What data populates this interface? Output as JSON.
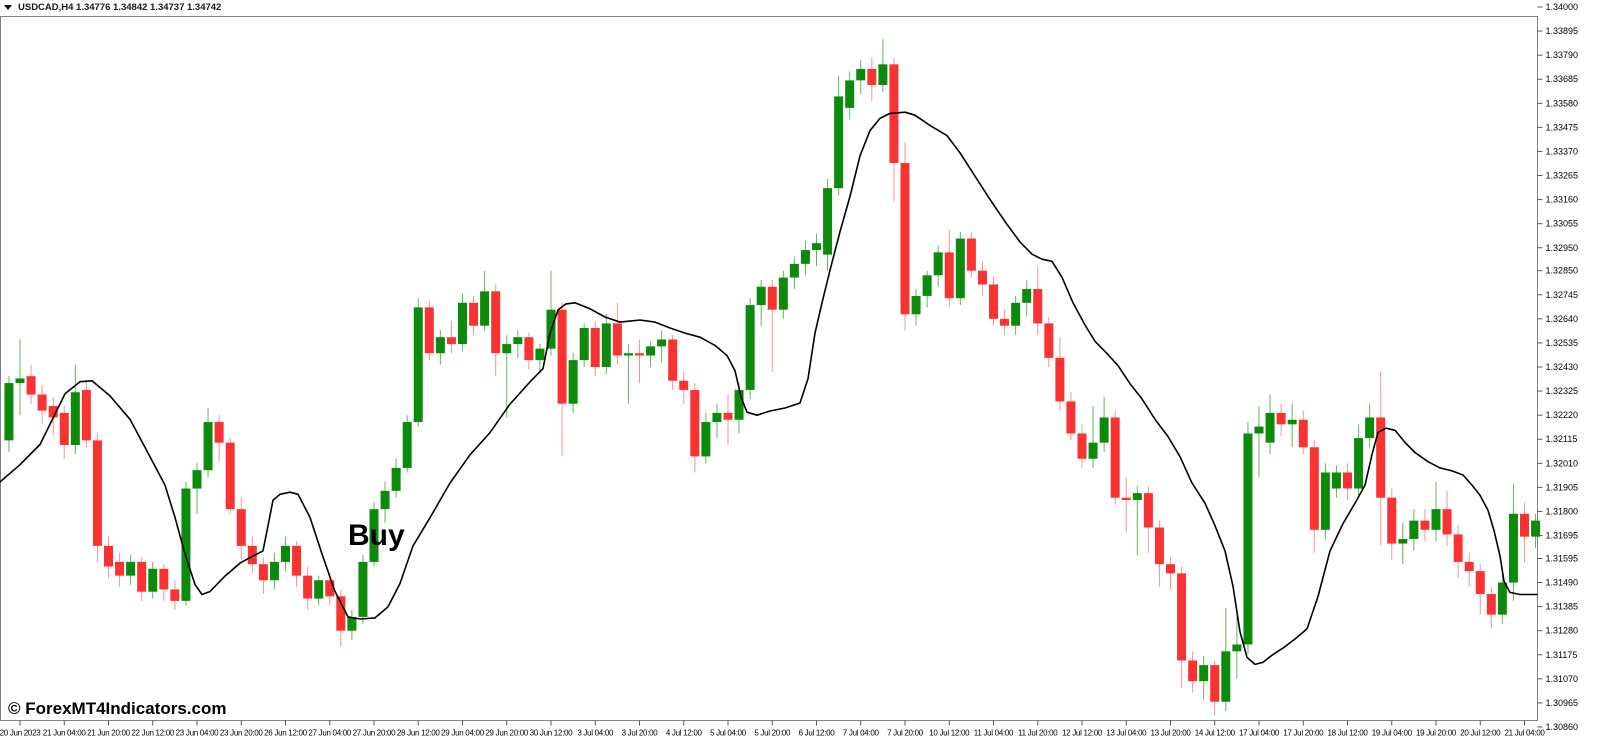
{
  "header": {
    "symbol_line": "USDCAD,H4  1.34776 1.34842 1.34737 1.34742",
    "dropdown_icon": "collapse-triangle"
  },
  "annotations": {
    "buy_label": "Buy",
    "watermark": "© ForexMT4Indicators.com"
  },
  "colors": {
    "background": "#ffffff",
    "bull_body": "#0c8a0c",
    "bear_body": "#f93232",
    "bull_wick": "#5cb85c",
    "bear_wick": "#f59393",
    "ma_line": "#000000",
    "frame": "#808080",
    "axis_text": "#000000"
  },
  "chart_data": {
    "type": "candlestick",
    "symbol": "USDCAD",
    "timeframe": "H4",
    "title": "USDCAD H4 candlestick chart with moving-average line and Buy signal",
    "grid": false,
    "legend_position": "none",
    "ylim": [
      1.3086,
      1.34
    ],
    "y_axis_labels": [
      "1.34000",
      "1.33895",
      "1.33790",
      "1.33685",
      "1.33580",
      "1.33475",
      "1.33370",
      "1.33265",
      "1.33160",
      "1.33055",
      "1.32950",
      "1.32850",
      "1.32745",
      "1.32640",
      "1.32535",
      "1.32430",
      "1.32325",
      "1.32220",
      "1.32115",
      "1.32010",
      "1.31905",
      "1.31800",
      "1.31695",
      "1.31595",
      "1.31490",
      "1.31385",
      "1.31280",
      "1.31175",
      "1.31070",
      "1.30965",
      "1.30860"
    ],
    "x_axis_labels": [
      "20 Jun 2023",
      "21 Jun 04:00",
      "21 Jun 20:00",
      "22 Jun 12:00",
      "23 Jun 04:00",
      "23 Jun 20:00",
      "26 Jun 12:00",
      "27 Jun 04:00",
      "27 Jun 20:00",
      "28 Jun 12:00",
      "29 Jun 04:00",
      "29 Jun 20:00",
      "30 Jun 12:00",
      "3 Jul 04:00",
      "3 Jul 20:00",
      "4 Jul 12:00",
      "5 Jul 04:00",
      "5 Jul 20:00",
      "6 Jul 12:00",
      "7 Jul 04:00",
      "7 Jul 20:00",
      "10 Jul 12:00",
      "11 Jul 04:00",
      "11 Jul 20:00",
      "12 Jul 12:00",
      "13 Jul 04:00",
      "13 Jul 20:00",
      "14 Jul 12:00",
      "17 Jul 04:00",
      "17 Jul 20:00",
      "18 Jul 12:00",
      "19 Jul 04:00",
      "19 Jul 20:00",
      "20 Jul 12:00",
      "21 Jul 04:00"
    ],
    "x_label_every_n_bars": 4,
    "first_labeled_bar": 1,
    "candles_ohlc": [
      [
        1.3211,
        1.3239,
        1.3206,
        1.3236
      ],
      [
        1.3236,
        1.3255,
        1.3222,
        1.3238
      ],
      [
        1.3239,
        1.3244,
        1.3227,
        1.3231
      ],
      [
        1.3231,
        1.3235,
        1.3218,
        1.3224
      ],
      [
        1.3226,
        1.323,
        1.3213,
        1.3221
      ],
      [
        1.3223,
        1.3226,
        1.3203,
        1.3209
      ],
      [
        1.3209,
        1.3244,
        1.3205,
        1.3232
      ],
      [
        1.3233,
        1.3237,
        1.3208,
        1.3211
      ],
      [
        1.3211,
        1.3214,
        1.3158,
        1.3165
      ],
      [
        1.3165,
        1.3169,
        1.3151,
        1.3156
      ],
      [
        1.3158,
        1.3162,
        1.3147,
        1.3152
      ],
      [
        1.3152,
        1.3161,
        1.3148,
        1.3158
      ],
      [
        1.3158,
        1.316,
        1.3141,
        1.3145
      ],
      [
        1.3145,
        1.3158,
        1.3142,
        1.3155
      ],
      [
        1.3155,
        1.3157,
        1.3141,
        1.3146
      ],
      [
        1.3146,
        1.315,
        1.3137,
        1.3141
      ],
      [
        1.3141,
        1.3193,
        1.3139,
        1.319
      ],
      [
        1.319,
        1.3201,
        1.3179,
        1.3198
      ],
      [
        1.3198,
        1.3225,
        1.3195,
        1.3219
      ],
      [
        1.3219,
        1.3222,
        1.3202,
        1.321
      ],
      [
        1.321,
        1.3212,
        1.3179,
        1.3181
      ],
      [
        1.3181,
        1.3186,
        1.3159,
        1.3165
      ],
      [
        1.3165,
        1.3169,
        1.3153,
        1.3157
      ],
      [
        1.3157,
        1.316,
        1.3144,
        1.315
      ],
      [
        1.315,
        1.3162,
        1.3146,
        1.3158
      ],
      [
        1.3158,
        1.3169,
        1.3154,
        1.3165
      ],
      [
        1.3165,
        1.3167,
        1.3147,
        1.3152
      ],
      [
        1.3152,
        1.3156,
        1.3137,
        1.3142
      ],
      [
        1.3142,
        1.3152,
        1.3139,
        1.315
      ],
      [
        1.315,
        1.3153,
        1.3139,
        1.3143
      ],
      [
        1.3143,
        1.3146,
        1.3121,
        1.3128
      ],
      [
        1.3128,
        1.3137,
        1.3124,
        1.3134
      ],
      [
        1.3134,
        1.3161,
        1.3131,
        1.3158
      ],
      [
        1.3158,
        1.3184,
        1.3156,
        1.3181
      ],
      [
        1.3181,
        1.3193,
        1.3175,
        1.3189
      ],
      [
        1.3189,
        1.3203,
        1.3186,
        1.3199
      ],
      [
        1.3199,
        1.3222,
        1.3197,
        1.3219
      ],
      [
        1.3219,
        1.3273,
        1.3217,
        1.3269
      ],
      [
        1.3269,
        1.3272,
        1.3246,
        1.3249
      ],
      [
        1.3249,
        1.3259,
        1.3244,
        1.3256
      ],
      [
        1.3256,
        1.3263,
        1.3249,
        1.3253
      ],
      [
        1.3253,
        1.3275,
        1.325,
        1.3271
      ],
      [
        1.3271,
        1.3274,
        1.3257,
        1.3261
      ],
      [
        1.3261,
        1.3285,
        1.3259,
        1.3276
      ],
      [
        1.3276,
        1.3279,
        1.3239,
        1.3249
      ],
      [
        1.3249,
        1.3257,
        1.3221,
        1.3253
      ],
      [
        1.3253,
        1.3259,
        1.3247,
        1.3256
      ],
      [
        1.3256,
        1.3258,
        1.3242,
        1.3246
      ],
      [
        1.3246,
        1.3253,
        1.3241,
        1.3251
      ],
      [
        1.3251,
        1.3285,
        1.3248,
        1.3268
      ],
      [
        1.3268,
        1.3271,
        1.3204,
        1.3227
      ],
      [
        1.3227,
        1.3249,
        1.3223,
        1.3246
      ],
      [
        1.3246,
        1.3262,
        1.3243,
        1.326
      ],
      [
        1.326,
        1.3263,
        1.3239,
        1.3243
      ],
      [
        1.3243,
        1.3266,
        1.324,
        1.3262
      ],
      [
        1.3262,
        1.3271,
        1.3244,
        1.3248
      ],
      [
        1.3248,
        1.3253,
        1.3227,
        1.3249
      ],
      [
        1.3249,
        1.3255,
        1.3236,
        1.3248
      ],
      [
        1.3248,
        1.3254,
        1.3243,
        1.3252
      ],
      [
        1.3252,
        1.3259,
        1.3245,
        1.3255
      ],
      [
        1.3255,
        1.3257,
        1.3233,
        1.3237
      ],
      [
        1.3237,
        1.3241,
        1.3227,
        1.3233
      ],
      [
        1.3233,
        1.3236,
        1.3197,
        1.3204
      ],
      [
        1.3204,
        1.3223,
        1.3201,
        1.3219
      ],
      [
        1.3219,
        1.3227,
        1.3212,
        1.3223
      ],
      [
        1.3223,
        1.3231,
        1.3209,
        1.322
      ],
      [
        1.322,
        1.3236,
        1.3214,
        1.3233
      ],
      [
        1.3233,
        1.3273,
        1.3229,
        1.327
      ],
      [
        1.327,
        1.3281,
        1.3261,
        1.3278
      ],
      [
        1.3278,
        1.3281,
        1.3241,
        1.3268
      ],
      [
        1.3268,
        1.3285,
        1.3264,
        1.3282
      ],
      [
        1.3282,
        1.3291,
        1.3277,
        1.3288
      ],
      [
        1.3288,
        1.3298,
        1.3283,
        1.3294
      ],
      [
        1.3294,
        1.3301,
        1.3287,
        1.3297
      ],
      [
        1.3292,
        1.3325,
        1.3285,
        1.3321
      ],
      [
        1.3321,
        1.337,
        1.3318,
        1.3361
      ],
      [
        1.3356,
        1.3372,
        1.3351,
        1.3368
      ],
      [
        1.3368,
        1.3377,
        1.3362,
        1.3373
      ],
      [
        1.3373,
        1.3378,
        1.3359,
        1.3366
      ],
      [
        1.3366,
        1.3386,
        1.3363,
        1.3375
      ],
      [
        1.3375,
        1.3378,
        1.3315,
        1.3332
      ],
      [
        1.3332,
        1.3341,
        1.3259,
        1.3266
      ],
      [
        1.3266,
        1.3277,
        1.3261,
        1.3274
      ],
      [
        1.3274,
        1.3285,
        1.3269,
        1.3283
      ],
      [
        1.3283,
        1.3296,
        1.3278,
        1.3293
      ],
      [
        1.3293,
        1.3303,
        1.3269,
        1.3273
      ],
      [
        1.3273,
        1.3302,
        1.327,
        1.3299
      ],
      [
        1.3299,
        1.3302,
        1.3282,
        1.3285
      ],
      [
        1.3285,
        1.3289,
        1.3274,
        1.3279
      ],
      [
        1.3279,
        1.3282,
        1.3261,
        1.3264
      ],
      [
        1.3264,
        1.3268,
        1.3257,
        1.3261
      ],
      [
        1.3261,
        1.3274,
        1.3257,
        1.3271
      ],
      [
        1.3271,
        1.3281,
        1.3265,
        1.3277
      ],
      [
        1.3277,
        1.3287,
        1.3257,
        1.3262
      ],
      [
        1.3262,
        1.3265,
        1.3243,
        1.3247
      ],
      [
        1.3247,
        1.3256,
        1.3224,
        1.3228
      ],
      [
        1.3228,
        1.3232,
        1.3211,
        1.3214
      ],
      [
        1.3214,
        1.3218,
        1.3199,
        1.3203
      ],
      [
        1.3203,
        1.3226,
        1.3199,
        1.321
      ],
      [
        1.321,
        1.323,
        1.3206,
        1.3221
      ],
      [
        1.3221,
        1.3224,
        1.3183,
        1.3186
      ],
      [
        1.3186,
        1.3195,
        1.3171,
        1.3185
      ],
      [
        1.3185,
        1.3191,
        1.3161,
        1.3188
      ],
      [
        1.3188,
        1.3191,
        1.3162,
        1.3173
      ],
      [
        1.3173,
        1.3176,
        1.3147,
        1.3157
      ],
      [
        1.3157,
        1.316,
        1.3146,
        1.3153
      ],
      [
        1.3153,
        1.3156,
        1.3103,
        1.3115
      ],
      [
        1.3115,
        1.3119,
        1.3101,
        1.3106
      ],
      [
        1.3106,
        1.3117,
        1.3098,
        1.3113
      ],
      [
        1.3113,
        1.3115,
        1.3091,
        1.3097
      ],
      [
        1.3097,
        1.3138,
        1.3093,
        1.3119
      ],
      [
        1.3119,
        1.3134,
        1.3107,
        1.3122
      ],
      [
        1.3122,
        1.3219,
        1.3118,
        1.3214
      ],
      [
        1.3214,
        1.3226,
        1.3195,
        1.3217
      ],
      [
        1.321,
        1.3231,
        1.3205,
        1.3223
      ],
      [
        1.3223,
        1.3227,
        1.3213,
        1.3218
      ],
      [
        1.3218,
        1.3227,
        1.3208,
        1.322
      ],
      [
        1.322,
        1.3224,
        1.3205,
        1.3208
      ],
      [
        1.3208,
        1.3211,
        1.3162,
        1.3172
      ],
      [
        1.3172,
        1.3201,
        1.3168,
        1.3197
      ],
      [
        1.319,
        1.32,
        1.3186,
        1.3197
      ],
      [
        1.3197,
        1.3201,
        1.3185,
        1.319
      ],
      [
        1.319,
        1.3218,
        1.3186,
        1.3212
      ],
      [
        1.3212,
        1.3227,
        1.3208,
        1.3221
      ],
      [
        1.3221,
        1.3241,
        1.3165,
        1.3186
      ],
      [
        1.3186,
        1.319,
        1.3159,
        1.3166
      ],
      [
        1.3166,
        1.3175,
        1.3157,
        1.3168
      ],
      [
        1.3168,
        1.3181,
        1.3163,
        1.3176
      ],
      [
        1.3176,
        1.3181,
        1.3167,
        1.3172
      ],
      [
        1.3172,
        1.3193,
        1.3167,
        1.3181
      ],
      [
        1.3181,
        1.3189,
        1.3165,
        1.317
      ],
      [
        1.317,
        1.3174,
        1.3151,
        1.3158
      ],
      [
        1.3158,
        1.3162,
        1.3147,
        1.3154
      ],
      [
        1.3154,
        1.3157,
        1.3135,
        1.3144
      ],
      [
        1.3144,
        1.3147,
        1.3129,
        1.3135
      ],
      [
        1.3135,
        1.3153,
        1.3131,
        1.3149
      ],
      [
        1.3149,
        1.3192,
        1.3141,
        1.3179
      ],
      [
        1.3179,
        1.3184,
        1.3158,
        1.3169
      ],
      [
        1.3169,
        1.3179,
        1.3164,
        1.3176
      ]
    ],
    "ma_line_points": [
      [
        0,
        1.31929
      ],
      [
        20,
        1.32004
      ],
      [
        40,
        1.32092
      ],
      [
        65,
        1.32313
      ],
      [
        80,
        1.32366
      ],
      [
        92,
        1.3237
      ],
      [
        110,
        1.32304
      ],
      [
        130,
        1.32202
      ],
      [
        150,
        1.32039
      ],
      [
        165,
        1.31915
      ],
      [
        175,
        1.31774
      ],
      [
        185,
        1.31615
      ],
      [
        195,
        1.31482
      ],
      [
        202,
        1.31438
      ],
      [
        210,
        1.31451
      ],
      [
        225,
        1.31518
      ],
      [
        240,
        1.31575
      ],
      [
        255,
        1.3161
      ],
      [
        263,
        1.31628
      ],
      [
        268,
        1.31738
      ],
      [
        273,
        1.31849
      ],
      [
        280,
        1.31875
      ],
      [
        290,
        1.31884
      ],
      [
        298,
        1.31875
      ],
      [
        310,
        1.31774
      ],
      [
        322,
        1.31615
      ],
      [
        335,
        1.31451
      ],
      [
        348,
        1.3134
      ],
      [
        360,
        1.31331
      ],
      [
        375,
        1.31336
      ],
      [
        388,
        1.31384
      ],
      [
        400,
        1.31486
      ],
      [
        413,
        1.3165
      ],
      [
        430,
        1.31773
      ],
      [
        450,
        1.31924
      ],
      [
        470,
        1.32047
      ],
      [
        490,
        1.32144
      ],
      [
        510,
        1.32268
      ],
      [
        530,
        1.32365
      ],
      [
        543,
        1.32423
      ],
      [
        550,
        1.32577
      ],
      [
        558,
        1.32679
      ],
      [
        566,
        1.32705
      ],
      [
        575,
        1.3271
      ],
      [
        590,
        1.32684
      ],
      [
        605,
        1.32648
      ],
      [
        620,
        1.32626
      ],
      [
        640,
        1.32635
      ],
      [
        655,
        1.32626
      ],
      [
        670,
        1.326
      ],
      [
        685,
        1.32578
      ],
      [
        700,
        1.3256
      ],
      [
        715,
        1.32524
      ],
      [
        727,
        1.3248
      ],
      [
        735,
        1.32414
      ],
      [
        741,
        1.323
      ],
      [
        747,
        1.32233
      ],
      [
        757,
        1.3222
      ],
      [
        770,
        1.32238
      ],
      [
        785,
        1.32251
      ],
      [
        800,
        1.32273
      ],
      [
        808,
        1.32379
      ],
      [
        815,
        1.32578
      ],
      [
        822,
        1.3271
      ],
      [
        830,
        1.32852
      ],
      [
        840,
        1.3302
      ],
      [
        850,
        1.33174
      ],
      [
        860,
        1.33351
      ],
      [
        870,
        1.33461
      ],
      [
        880,
        1.33514
      ],
      [
        890,
        1.33536
      ],
      [
        905,
        1.33541
      ],
      [
        915,
        1.33528
      ],
      [
        930,
        1.33483
      ],
      [
        947,
        1.33439
      ],
      [
        960,
        1.33364
      ],
      [
        975,
        1.33262
      ],
      [
        990,
        1.33161
      ],
      [
        1005,
        1.33064
      ],
      [
        1020,
        1.32975
      ],
      [
        1032,
        1.32922
      ],
      [
        1042,
        1.329
      ],
      [
        1052,
        1.32891
      ],
      [
        1062,
        1.32821
      ],
      [
        1073,
        1.3271
      ],
      [
        1085,
        1.32613
      ],
      [
        1095,
        1.32542
      ],
      [
        1107,
        1.32489
      ],
      [
        1118,
        1.32436
      ],
      [
        1130,
        1.32357
      ],
      [
        1142,
        1.32291
      ],
      [
        1155,
        1.32202
      ],
      [
        1168,
        1.32127
      ],
      [
        1180,
        1.32039
      ],
      [
        1192,
        1.31924
      ],
      [
        1205,
        1.31836
      ],
      [
        1215,
        1.31738
      ],
      [
        1225,
        1.31628
      ],
      [
        1233,
        1.31474
      ],
      [
        1240,
        1.31275
      ],
      [
        1247,
        1.31164
      ],
      [
        1255,
        1.31133
      ],
      [
        1263,
        1.31142
      ],
      [
        1272,
        1.31173
      ],
      [
        1283,
        1.31204
      ],
      [
        1295,
        1.31244
      ],
      [
        1307,
        1.31288
      ],
      [
        1318,
        1.31429
      ],
      [
        1330,
        1.31628
      ],
      [
        1343,
        1.31747
      ],
      [
        1355,
        1.31836
      ],
      [
        1365,
        1.31915
      ],
      [
        1372,
        1.32048
      ],
      [
        1378,
        1.32145
      ],
      [
        1386,
        1.32163
      ],
      [
        1395,
        1.32154
      ],
      [
        1405,
        1.32101
      ],
      [
        1415,
        1.32057
      ],
      [
        1428,
        1.32017
      ],
      [
        1440,
        1.3199
      ],
      [
        1452,
        1.31977
      ],
      [
        1463,
        1.31959
      ],
      [
        1472,
        1.31915
      ],
      [
        1480,
        1.31871
      ],
      [
        1488,
        1.31805
      ],
      [
        1494,
        1.31717
      ],
      [
        1500,
        1.31606
      ],
      [
        1504,
        1.31496
      ],
      [
        1510,
        1.31447
      ],
      [
        1520,
        1.31438
      ],
      [
        1537,
        1.31438
      ]
    ]
  }
}
